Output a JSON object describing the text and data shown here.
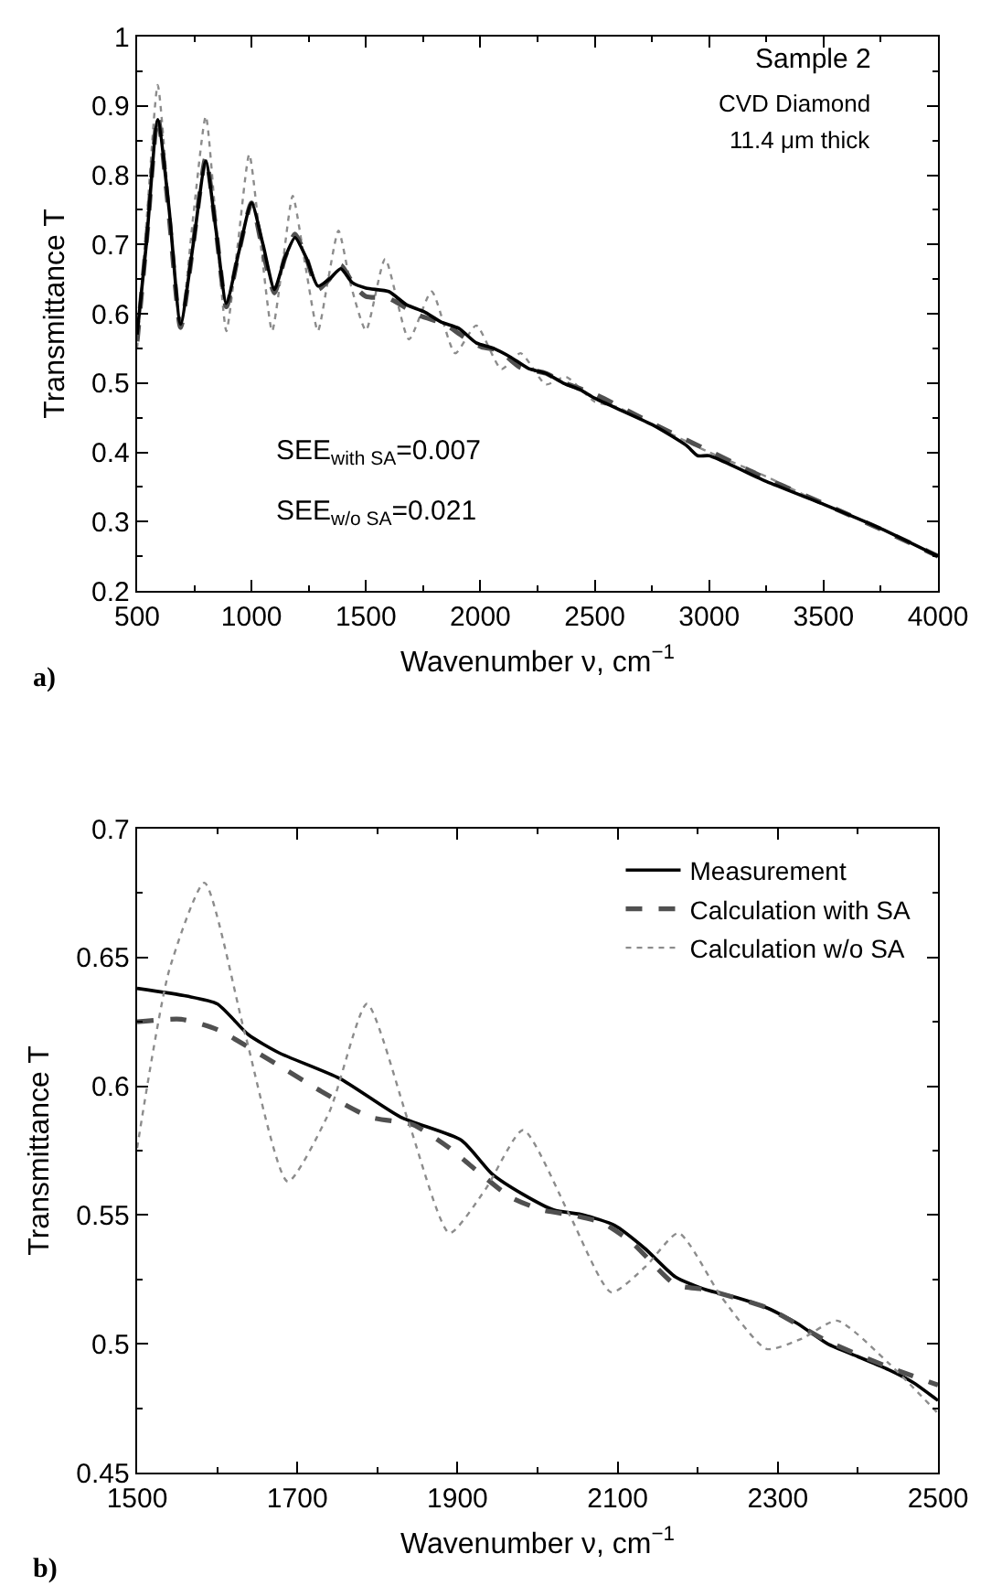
{
  "chart_data": [
    {
      "type": "line",
      "xlabel": "Wavenumber ν, cm$^{−1}$",
      "ylabel": "Transmittance T",
      "xlim": [
        500,
        4000
      ],
      "xticks": [
        500,
        1000,
        1500,
        2000,
        2500,
        3000,
        3500,
        4000
      ],
      "ylim": [
        0.2,
        1
      ],
      "yticks": [
        0.2,
        0.3,
        0.4,
        0.5,
        0.6,
        0.7,
        0.8,
        0.9,
        1
      ],
      "grid": false,
      "legend": false,
      "marker": "none",
      "annotations": [
        "Sample 2",
        "CVD Diamond",
        "11.4 μm thick",
        "SEE$_{with SA}$=0.007",
        "SEE$_{w/o SA}$=0.021",
        "a)"
      ],
      "series": [
        {
          "color": "#8c8c8c",
          "line_style": "dotted",
          "x": [
            500,
            545,
            590,
            640,
            690,
            745,
            800,
            845,
            890,
            940,
            990,
            1040,
            1090,
            1135,
            1180,
            1235,
            1290,
            1335,
            1380,
            1435,
            1500,
            1584,
            1688,
            1787,
            1890,
            1982,
            2092,
            2176,
            2286,
            2374,
            2500,
            2600,
            2750,
            3000,
            3250,
            3500,
            3750,
            4000
          ],
          "values": [
            0.55,
            0.75,
            0.93,
            0.75,
            0.58,
            0.74,
            0.885,
            0.73,
            0.575,
            0.7,
            0.83,
            0.7,
            0.575,
            0.67,
            0.77,
            0.67,
            0.575,
            0.65,
            0.72,
            0.64,
            0.576,
            0.679,
            0.563,
            0.632,
            0.543,
            0.583,
            0.52,
            0.543,
            0.498,
            0.509,
            0.473,
            0.465,
            0.44,
            0.4,
            0.365,
            0.325,
            0.29,
            0.25
          ]
        },
        {
          "color": "#505050",
          "line_style": "dashed",
          "x": [
            500,
            545,
            590,
            640,
            690,
            745,
            800,
            845,
            890,
            945,
            1000,
            1050,
            1100,
            1145,
            1190,
            1240,
            1290,
            1340,
            1390,
            1450,
            1500,
            1600,
            1730,
            1845,
            1921,
            2005,
            2081,
            2172,
            2286,
            2362,
            2500,
            2750,
            3000,
            3250,
            3500,
            3750,
            4000
          ],
          "values": [
            0.56,
            0.72,
            0.885,
            0.74,
            0.58,
            0.7,
            0.825,
            0.72,
            0.61,
            0.69,
            0.76,
            0.69,
            0.63,
            0.68,
            0.715,
            0.68,
            0.635,
            0.65,
            0.67,
            0.64,
            0.625,
            0.622,
            0.598,
            0.585,
            0.568,
            0.552,
            0.547,
            0.523,
            0.514,
            0.501,
            0.484,
            0.442,
            0.402,
            0.362,
            0.326,
            0.289,
            0.25
          ]
        },
        {
          "color": "#000000",
          "line_style": "solid",
          "x": [
            500,
            540,
            590,
            640,
            690,
            745,
            800,
            845,
            890,
            945,
            1000,
            1050,
            1100,
            1145,
            1190,
            1240,
            1290,
            1340,
            1390,
            1440,
            1500,
            1600,
            1677,
            1753,
            1829,
            1905,
            1982,
            2058,
            2134,
            2210,
            2286,
            2362,
            2438,
            2500,
            2750,
            2900,
            2950,
            3000,
            3250,
            3500,
            3750,
            4000
          ],
          "values": [
            0.57,
            0.7,
            0.88,
            0.75,
            0.585,
            0.7,
            0.82,
            0.72,
            0.615,
            0.69,
            0.76,
            0.7,
            0.635,
            0.68,
            0.71,
            0.68,
            0.64,
            0.65,
            0.665,
            0.645,
            0.637,
            0.632,
            0.613,
            0.603,
            0.588,
            0.579,
            0.558,
            0.55,
            0.537,
            0.521,
            0.514,
            0.5,
            0.49,
            0.478,
            0.44,
            0.41,
            0.395,
            0.395,
            0.358,
            0.325,
            0.29,
            0.25
          ]
        }
      ]
    },
    {
      "type": "line",
      "xlabel": "Wavenumber ν, cm$^{−1}$",
      "ylabel": "Transmittance T",
      "xlim": [
        1500,
        2500
      ],
      "xticks": [
        1500,
        1700,
        1900,
        2100,
        2300,
        2500
      ],
      "ylim": [
        0.45,
        0.7
      ],
      "yticks": [
        0.45,
        0.5,
        0.55,
        0.6,
        0.65,
        0.7
      ],
      "grid": false,
      "legend": "top right",
      "marker": "none",
      "annotations": [
        "b)"
      ],
      "series": [
        {
          "name": "Measurement",
          "color": "#000000",
          "line_style": "solid",
          "x": [
            1500,
            1562,
            1600,
            1639,
            1677,
            1753,
            1829,
            1905,
            1943,
            1982,
            2020,
            2058,
            2096,
            2134,
            2172,
            2210,
            2248,
            2286,
            2324,
            2362,
            2400,
            2438,
            2469,
            2500
          ],
          "values": [
            0.638,
            0.635,
            0.632,
            0.62,
            0.613,
            0.603,
            0.588,
            0.579,
            0.566,
            0.558,
            0.552,
            0.55,
            0.546,
            0.537,
            0.526,
            0.521,
            0.518,
            0.514,
            0.508,
            0.5,
            0.495,
            0.49,
            0.485,
            0.478
          ]
        },
        {
          "name": "Calculation with SA",
          "color": "#505050",
          "line_style": "dashed",
          "x": [
            1500,
            1555,
            1600,
            1677,
            1730,
            1791,
            1845,
            1890,
            1921,
            1966,
            2005,
            2043,
            2081,
            2119,
            2172,
            2210,
            2286,
            2362,
            2438,
            2500
          ],
          "values": [
            0.625,
            0.626,
            0.622,
            0.608,
            0.598,
            0.588,
            0.585,
            0.576,
            0.568,
            0.557,
            0.552,
            0.55,
            0.547,
            0.539,
            0.523,
            0.521,
            0.514,
            0.501,
            0.491,
            0.484
          ]
        },
        {
          "name": "Calculation w/o SA",
          "color": "#8c8c8c",
          "line_style": "dotted",
          "x": [
            1500,
            1540,
            1584,
            1635,
            1688,
            1740,
            1787,
            1840,
            1890,
            1935,
            1982,
            2040,
            2092,
            2135,
            2176,
            2230,
            2286,
            2330,
            2374,
            2440,
            2500
          ],
          "values": [
            0.576,
            0.645,
            0.679,
            0.62,
            0.563,
            0.59,
            0.632,
            0.585,
            0.543,
            0.56,
            0.583,
            0.55,
            0.52,
            0.53,
            0.543,
            0.518,
            0.498,
            0.502,
            0.509,
            0.492,
            0.473
          ]
        }
      ]
    }
  ]
}
